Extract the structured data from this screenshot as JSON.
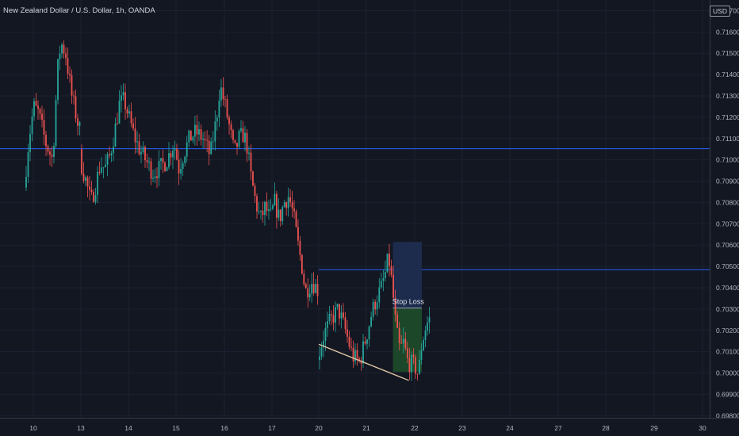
{
  "header": {
    "title": "New Zealand Dollar / U.S. Dollar, 1h, OANDA",
    "currency": "USD"
  },
  "colors": {
    "background": "#131722",
    "bull": "#26a69a",
    "bear": "#ef5350",
    "level_line": "#2962ff",
    "trendline": "#e0c9a6",
    "axis_text": "#b2b5be",
    "target_zone": "#1e2d4f",
    "stop_zone": "#1d4a2a",
    "stop_outline": "#43a047"
  },
  "chart_data": {
    "type": "candlestick",
    "title": "New Zealand Dollar / U.S. Dollar, 1h, OANDA",
    "x_ticks": [
      "10",
      "13",
      "14",
      "15",
      "16",
      "17",
      "20",
      "21",
      "22",
      "23",
      "24",
      "27",
      "28",
      "29",
      "30"
    ],
    "y_ticks": [
      "0.69800",
      "0.69900",
      "0.70000",
      "0.70100",
      "0.70200",
      "0.70300",
      "0.70400",
      "0.70500",
      "0.70600",
      "0.70700",
      "0.70800",
      "0.70900",
      "0.71000",
      "0.71100",
      "0.71200",
      "0.71300",
      "0.71400",
      "0.71500",
      "0.71600",
      "0.71700"
    ],
    "ylim": [
      0.6979,
      0.7175
    ],
    "x_range_days": [
      9.85,
      30.05
    ],
    "horizontal_levels": [
      0.71052,
      0.70485
    ],
    "annotations": [
      {
        "label": "Stop Loss",
        "price": 0.70305
      }
    ],
    "risk_reward": {
      "entry": 0.70305,
      "target": 0.70615,
      "stop": 0.70005,
      "start_day": 21.55,
      "end_day": 22.15
    },
    "trendline": {
      "from": {
        "day": 19.75,
        "price": 0.70135
      },
      "to": {
        "day": 21.88,
        "price": 0.69965
      }
    },
    "price_path": [
      [
        9.85,
        0.7087
      ],
      [
        9.95,
        0.711
      ],
      [
        10.05,
        0.7125
      ],
      [
        10.15,
        0.7122
      ],
      [
        10.3,
        0.7108
      ],
      [
        10.45,
        0.71
      ],
      [
        10.55,
        0.7142
      ],
      [
        10.62,
        0.7155
      ],
      [
        10.72,
        0.715
      ],
      [
        10.85,
        0.713
      ],
      [
        11.0,
        0.7115
      ],
      [
        11.15,
        0.7108
      ],
      [
        11.35,
        0.7112
      ],
      [
        11.5,
        0.7102
      ],
      [
        11.65,
        0.7114
      ],
      [
        11.8,
        0.712
      ],
      [
        11.95,
        0.7106
      ],
      [
        12.05,
        0.7112
      ],
      [
        12.2,
        0.7118
      ],
      [
        12.35,
        0.7108
      ],
      [
        12.5,
        0.7103
      ],
      [
        12.62,
        0.7128
      ],
      [
        12.7,
        0.714
      ],
      [
        12.78,
        0.7118
      ],
      [
        12.9,
        0.7112
      ],
      [
        13.05,
        0.7098
      ],
      [
        13.15,
        0.709
      ],
      [
        13.25,
        0.708
      ],
      [
        13.35,
        0.7088
      ],
      [
        13.45,
        0.7098
      ],
      [
        13.55,
        0.7096
      ],
      [
        13.65,
        0.7102
      ],
      [
        13.75,
        0.7113
      ],
      [
        13.85,
        0.7126
      ],
      [
        13.95,
        0.7128
      ],
      [
        14.05,
        0.712
      ],
      [
        14.15,
        0.7112
      ],
      [
        14.25,
        0.7106
      ],
      [
        14.35,
        0.7102
      ],
      [
        14.45,
        0.7098
      ],
      [
        14.55,
        0.7094
      ],
      [
        14.7,
        0.7096
      ],
      [
        14.85,
        0.71
      ],
      [
        15.0,
        0.7108
      ],
      [
        15.1,
        0.7096
      ],
      [
        15.2,
        0.7103
      ],
      [
        15.32,
        0.711
      ],
      [
        15.45,
        0.7113
      ],
      [
        15.6,
        0.711
      ],
      [
        15.75,
        0.7102
      ],
      [
        15.88,
        0.712
      ],
      [
        15.95,
        0.7135
      ],
      [
        16.05,
        0.7126
      ],
      [
        16.15,
        0.7115
      ],
      [
        16.25,
        0.7103
      ],
      [
        16.35,
        0.711
      ],
      [
        16.45,
        0.7112
      ],
      [
        16.52,
        0.7106
      ],
      [
        16.6,
        0.7092
      ],
      [
        16.7,
        0.708
      ],
      [
        16.8,
        0.7072
      ],
      [
        16.9,
        0.7078
      ],
      [
        17.0,
        0.7072
      ],
      [
        17.1,
        0.708
      ],
      [
        17.2,
        0.7072
      ],
      [
        17.3,
        0.708
      ],
      [
        17.4,
        0.7083
      ],
      [
        17.5,
        0.7074
      ],
      [
        17.6,
        0.706
      ],
      [
        17.7,
        0.7048
      ],
      [
        17.75,
        0.7038
      ],
      [
        17.9,
        0.7043
      ],
      [
        18.05,
        0.7038
      ],
      [
        18.2,
        0.703
      ],
      [
        18.35,
        0.7026
      ],
      [
        18.5,
        0.7023
      ],
      [
        18.65,
        0.702
      ],
      [
        18.8,
        0.7018
      ],
      [
        18.95,
        0.703
      ],
      [
        19.1,
        0.702
      ],
      [
        19.25,
        0.7015
      ],
      [
        19.4,
        0.7025
      ],
      [
        19.55,
        0.702
      ],
      [
        19.7,
        0.7012
      ],
      [
        19.85,
        0.7012
      ],
      [
        20.0,
        0.7005
      ],
      [
        20.15,
        0.7018
      ],
      [
        20.3,
        0.7025
      ],
      [
        20.45,
        0.703
      ],
      [
        20.6,
        0.702
      ],
      [
        20.75,
        0.7008
      ],
      [
        20.9,
        0.7005
      ],
      [
        21.05,
        0.7018
      ],
      [
        21.15,
        0.7028
      ],
      [
        21.25,
        0.7035
      ],
      [
        21.35,
        0.704
      ],
      [
        21.45,
        0.7048
      ],
      [
        21.5,
        0.7055
      ],
      [
        21.58,
        0.704
      ],
      [
        21.66,
        0.702
      ],
      [
        21.74,
        0.701
      ],
      [
        21.8,
        0.7015
      ],
      [
        21.9,
        0.7005
      ],
      [
        22.0,
        0.7004
      ],
      [
        22.07,
        0.7002
      ],
      [
        22.12,
        0.6999
      ],
      [
        22.18,
        0.7012
      ],
      [
        22.25,
        0.702
      ],
      [
        22.33,
        0.7025
      ]
    ]
  }
}
